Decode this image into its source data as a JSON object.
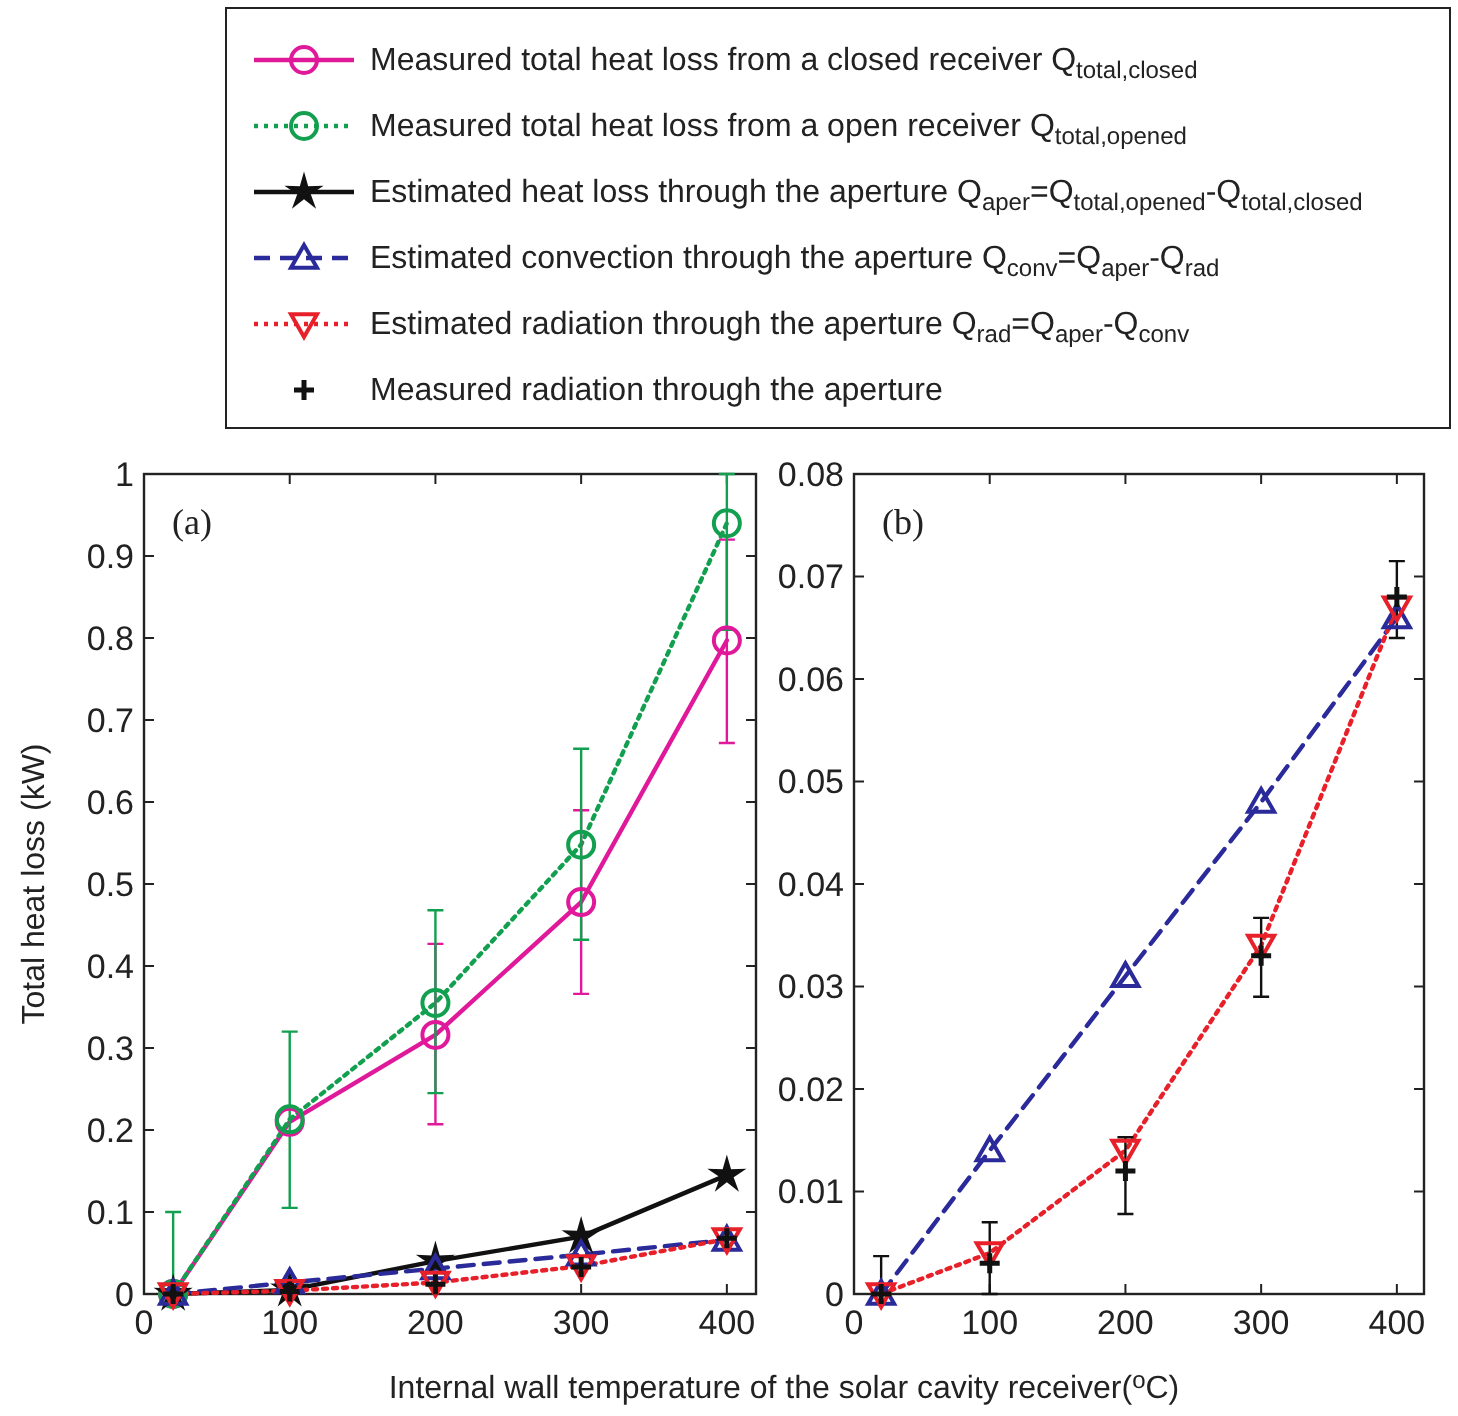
{
  "chart_data": [
    {
      "type": "line",
      "xlabel": "Internal wall temperature of the solar cavity receiver($^{o}$C)",
      "ylabel": "Total heat loss (kW)",
      "annotations": [
        "(a)"
      ],
      "xlim": [
        0,
        420
      ],
      "xticks": [
        0,
        100,
        200,
        300,
        400
      ],
      "ylim": [
        0,
        1
      ],
      "yticks": [
        0,
        0.1,
        0.2,
        0.3,
        0.4,
        0.5,
        0.6,
        0.7,
        0.8,
        0.9,
        1
      ],
      "legend": "top",
      "x": [
        20,
        100,
        200,
        300,
        400
      ],
      "series": [
        {
          "name": "Measured total heat loss from a closed receiver Q$_{total,closed}$",
          "color": "#e0189a",
          "marker": "circle",
          "line_style": "solid",
          "values": [
            0,
            0.21,
            0.316,
            0.478,
            0.797
          ],
          "errors": [
            null,
            null,
            [
              0.207,
              0.427
            ],
            [
              0.366,
              0.59
            ],
            [
              0.672,
              0.92
            ]
          ]
        },
        {
          "name": "Measured total heat loss from a open receiver Q$_{total,opened}$",
          "color": "#12a050",
          "marker": "circle",
          "line_style": "dotted",
          "values": [
            0,
            0.213,
            0.355,
            0.548,
            0.94
          ],
          "errors": [
            [
              0,
              0.1
            ],
            [
              0.105,
              0.32
            ],
            [
              0.245,
              0.468
            ],
            [
              0.432,
              0.665
            ],
            [
              0.81,
              1.0
            ]
          ]
        },
        {
          "name": "Estimated heat loss through the aperture Q$_{aper}$=Q$_{total,opened}$-Q$_{total,closed}$",
          "color": "#111111",
          "marker": "star",
          "line_style": "solid",
          "values": [
            0,
            0.005,
            0.04,
            0.07,
            0.145
          ]
        },
        {
          "name": "Estimated convection through the aperture Q$_{conv}$=Q$_{aper}$-Q$_{rad}$",
          "color": "#2a2a9a",
          "marker": "triangle",
          "line_style": "dashed",
          "values": [
            0,
            0.014,
            0.031,
            0.048,
            0.066
          ]
        },
        {
          "name": "Estimated radiation through the aperture Q$_{rad}$=Q$_{aper}$-Q$_{conv}$",
          "color": "#e8202a",
          "marker": "triangle-down",
          "line_style": "dotted",
          "values": [
            0,
            0.004,
            0.014,
            0.034,
            0.067
          ]
        },
        {
          "name": "Measured radiation through the aperture",
          "type": "scatter",
          "color": "#111111",
          "marker": "cross",
          "values": [
            0,
            0.003,
            0.012,
            0.033,
            0.068
          ]
        }
      ]
    },
    {
      "type": "line",
      "annotations": [
        "(b)"
      ],
      "xlim": [
        0,
        420
      ],
      "xticks": [
        0,
        100,
        200,
        300,
        400
      ],
      "ylim": [
        0,
        0.08
      ],
      "yticks": [
        0,
        0.01,
        0.02,
        0.03,
        0.04,
        0.05,
        0.06,
        0.07,
        0.08
      ],
      "x": [
        20,
        100,
        200,
        300,
        400
      ],
      "series": [
        {
          "color": "#2a2a9a",
          "marker": "triangle",
          "line_style": "dashed",
          "values": [
            0,
            0.014,
            0.031,
            0.048,
            0.066
          ]
        },
        {
          "color": "#e8202a",
          "marker": "triangle-down",
          "line_style": "dotted",
          "values": [
            0,
            0.004,
            0.014,
            0.034,
            0.067
          ]
        },
        {
          "type": "scatter",
          "color": "#111111",
          "marker": "cross",
          "values": [
            0,
            0.003,
            0.012,
            0.033,
            0.068
          ],
          "errors": [
            [
              0,
              0.0037
            ],
            [
              0,
              0.007
            ],
            [
              0.0078,
              0.0153
            ],
            [
              0.029,
              0.0367
            ],
            [
              0.064,
              0.0715
            ]
          ]
        }
      ]
    }
  ]
}
